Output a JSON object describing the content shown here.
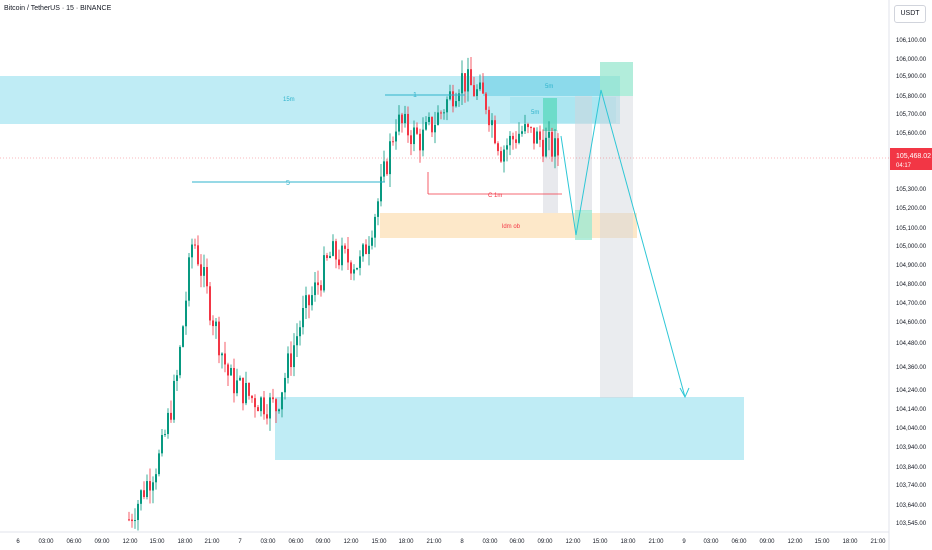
{
  "header": {
    "title": "Bitcoin / TetherUS · 15 · BINANCE",
    "currency": "USDT"
  },
  "colors": {
    "up": "#089981",
    "down": "#f23645",
    "zone": "#a9e5f1",
    "zone_text": "#2fb3cc",
    "ob": "#fde7c6",
    "ob_text": "#f23645",
    "label_line": "#2fb3cc",
    "marker_green": "#9fe9d2",
    "marker_gray": "#d1d4dc",
    "price_tag": "#f23645"
  },
  "chart_data": {
    "type": "candlestick",
    "last_price": "105,468.02",
    "countdown": "04:17",
    "y_ticks": [
      "106,100.00",
      "106,000.00",
      "105,900.00",
      "105,800.00",
      "105,700.00",
      "105,600.00",
      "105,500.00",
      "105,300.00",
      "105,200.00",
      "105,100.00",
      "105,000.00",
      "104,900.00",
      "104,800.00",
      "104,700.00",
      "104,600.00",
      "104,480.00",
      "104,360.00",
      "104,240.00",
      "104,140.00",
      "104,040.00",
      "103,940.00",
      "103,840.00",
      "103,740.00",
      "103,640.00",
      "103,545.00"
    ],
    "x_ticks": [
      "6",
      "03:00",
      "06:00",
      "09:00",
      "12:00",
      "15:00",
      "18:00",
      "21:00",
      "7",
      "03:00",
      "06:00",
      "09:00",
      "12:00",
      "15:00",
      "18:00",
      "21:00",
      "8",
      "03:00",
      "06:00",
      "09:00",
      "12:00",
      "15:00",
      "18:00",
      "21:00",
      "9",
      "03:00",
      "06:00",
      "09:00",
      "12:00",
      "15:00",
      "18:00",
      "21:00"
    ],
    "annotations": {
      "zone_15m": "15m",
      "zone_5m_top": "5m",
      "zone_5m_inner": "5m",
      "ob": "ldm ob",
      "label_1": "1",
      "label_5": "5",
      "label_c1m": "C 1m"
    }
  }
}
